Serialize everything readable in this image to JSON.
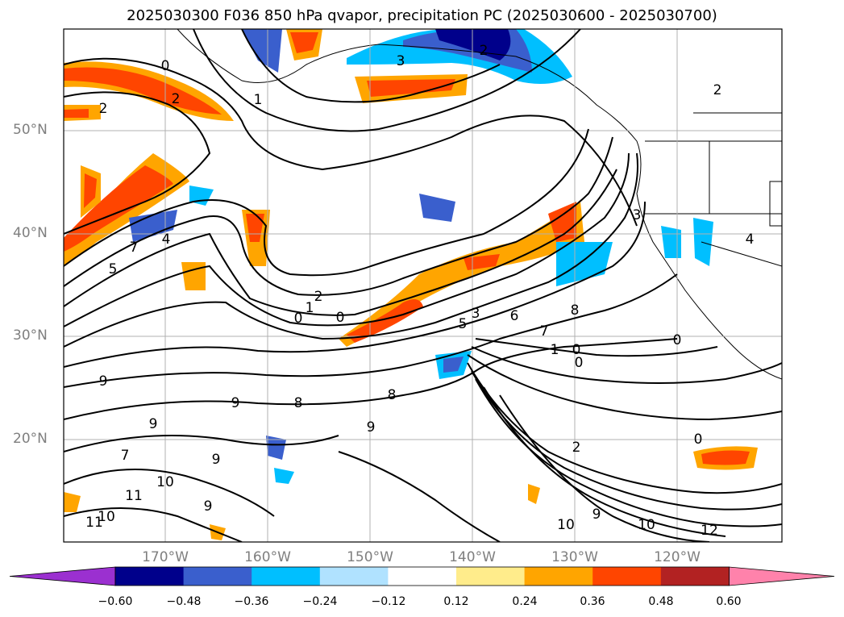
{
  "title": "2025030300 F036 850 hPa qvapor, precipitation PC (2025030600 - 2025030700)",
  "map": {
    "lat_labels": [
      "50°N",
      "40°N",
      "30°N",
      "20°N"
    ],
    "lon_labels": [
      "170°W",
      "160°W",
      "150°W",
      "140°W",
      "130°W",
      "120°W"
    ],
    "lon_range": [
      -180,
      -110
    ],
    "lat_range": [
      10,
      60
    ]
  },
  "colorbar": {
    "ticks": [
      "−0.60",
      "−0.48",
      "−0.36",
      "−0.24",
      "−0.12",
      "0.12",
      "0.24",
      "0.36",
      "0.48",
      "0.60"
    ],
    "colors": [
      "#9b30d0",
      "#00008b",
      "#3a5fcd",
      "#00bfff",
      "#b0e2ff",
      "#ffffff",
      "#ffec8b",
      "#ffa500",
      "#ff4500",
      "#b22222",
      "#ff82ab"
    ]
  },
  "contour_labels": [
    "0",
    "2",
    "1",
    "3",
    "2",
    "2",
    "2",
    "1",
    "2",
    "0",
    "0",
    "5",
    "3",
    "6",
    "8",
    "7",
    "1",
    "0",
    "0",
    "9",
    "9",
    "8",
    "8",
    "9",
    "9",
    "9",
    "7",
    "10",
    "11",
    "10",
    "11",
    "9",
    "2",
    "0",
    "10",
    "9",
    "10",
    "12",
    "4",
    "3",
    "5",
    "7",
    "4",
    "0"
  ]
}
